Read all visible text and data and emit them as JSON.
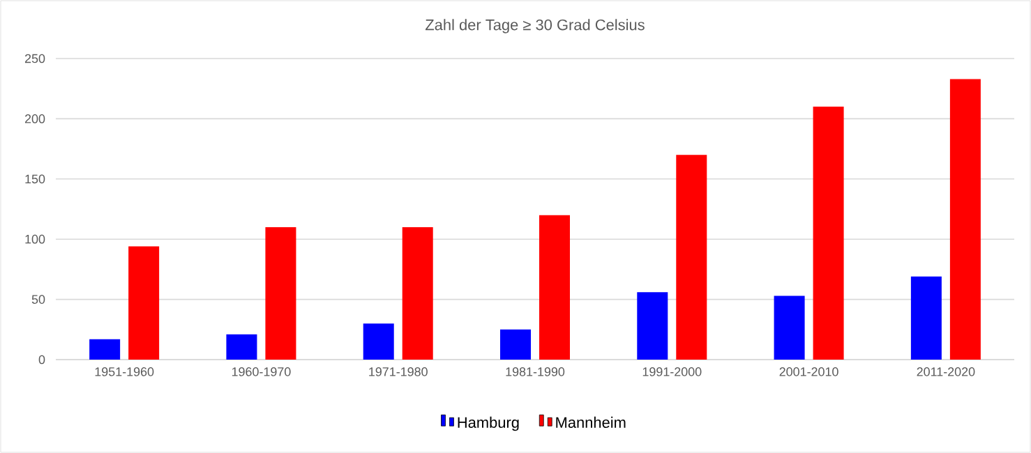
{
  "chart_data": {
    "type": "bar",
    "title": "Zahl der Tage ≥ 30 Grad Celsius",
    "categories": [
      "1951-1960",
      "1960-1970",
      "1971-1980",
      "1981-1990",
      "1991-2000",
      "2001-2010",
      "2011-2020"
    ],
    "series": [
      {
        "name": "Hamburg",
        "color": "#0000ff",
        "values": [
          17,
          21,
          30,
          25,
          56,
          53,
          69
        ]
      },
      {
        "name": "Mannheim",
        "color": "#ff0000",
        "values": [
          94,
          110,
          110,
          120,
          170,
          210,
          233
        ]
      }
    ],
    "ylim": [
      0,
      250
    ],
    "yticks": [
      0,
      50,
      100,
      150,
      200,
      250
    ],
    "grid": "y",
    "legend": "bottom"
  }
}
